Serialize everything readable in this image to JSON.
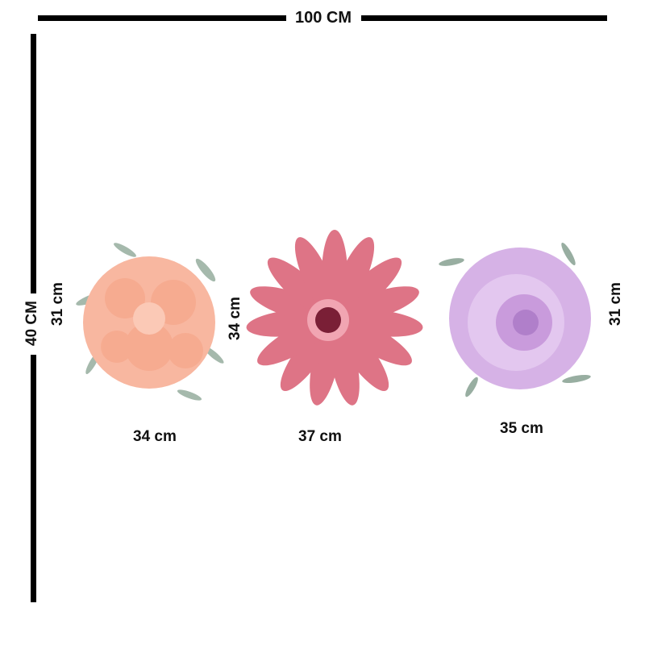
{
  "dimensions": {
    "total_width": "100 CM",
    "total_height": "40 CM"
  },
  "flowers": [
    {
      "name": "peach dahlia",
      "height_label": "31 cm",
      "width_label": "34 cm",
      "color": "#f6a98e"
    },
    {
      "name": "pink daisy",
      "height_label": "34 cm",
      "width_label": "37 cm",
      "color": "#dc6f82"
    },
    {
      "name": "lavender rose",
      "height_label": "31 cm",
      "width_label": "35 cm",
      "color": "#c79ad8"
    }
  ],
  "colors": {
    "lines": "#000000",
    "leaves": "#7f9a8a"
  }
}
